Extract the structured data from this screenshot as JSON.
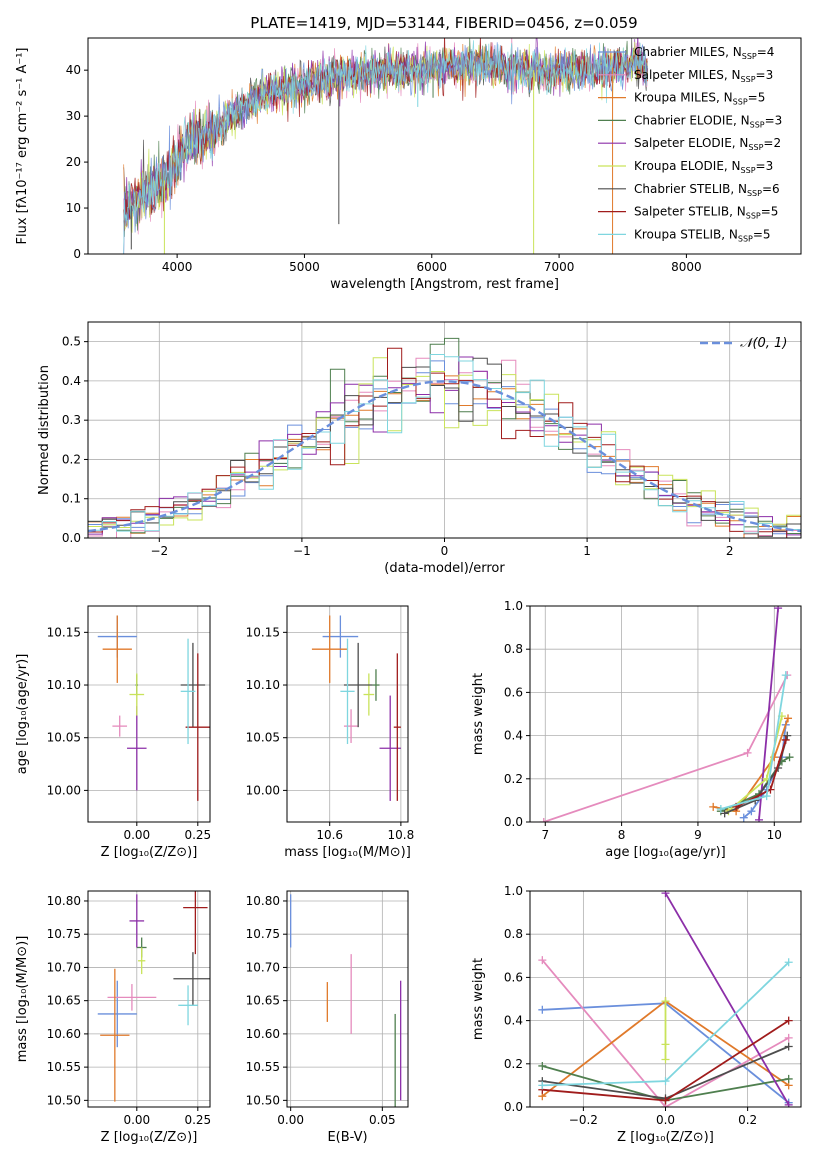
{
  "colors": {
    "series": [
      "#6a8fdc",
      "#e58bbd",
      "#e07a2b",
      "#4f7f4f",
      "#8c2fa8",
      "#c9e35a",
      "#4d4d4d",
      "#a01c1c",
      "#7fd6df"
    ],
    "gauss": "#6a8fdc"
  },
  "chart_data": [
    {
      "type": "line",
      "title": "PLATE=1419, MJD=53144, FIBERID=0456, z=0.059",
      "xlabel": "wavelength [Angstrom, rest frame]",
      "ylabel": "Flux [fλ10⁻¹⁷ erg cm⁻² s⁻¹ A⁻¹]",
      "xlim": [
        3300,
        8900
      ],
      "ylim": [
        0,
        47
      ],
      "xticks": [
        "4000",
        "5000",
        "6000",
        "7000",
        "8000"
      ],
      "yticks": [
        "0",
        "10",
        "20",
        "30",
        "40"
      ],
      "legend_position": "upper-right",
      "legend": [
        "Chabrier MILES, N_SSP=4",
        "Salpeter MILES, N_SSP=3",
        "Kroupa MILES, N_SSP=5",
        "Chabrier ELODIE, N_SSP=3",
        "Salpeter ELODIE, N_SSP=2",
        "Kroupa ELODIE, N_SSP=3",
        "Chabrier STELIB, N_SSP=6",
        "Salpeter STELIB, N_SSP=5",
        "Kroupa STELIB, N_SSP=5"
      ],
      "legend_prefix": [
        "Chabrier MILES, N",
        "Salpeter MILES, N",
        "Kroupa MILES, N",
        "Chabrier ELODIE, N",
        "Salpeter ELODIE, N",
        "Kroupa ELODIE, N",
        "Chabrier STELIB, N",
        "Salpeter STELIB, N",
        "Kroupa STELIB, N"
      ],
      "legend_sub": "SSP",
      "legend_counts": [
        "=4",
        "=3",
        "=5",
        "=3",
        "=2",
        "=3",
        "=6",
        "=5",
        "=5"
      ],
      "continuum_x": [
        3580,
        3700,
        3850,
        3950,
        4000,
        4100,
        4300,
        4500,
        4700,
        5000,
        5300,
        5600,
        5900,
        6200,
        6500,
        6800,
        7100,
        7300,
        7500,
        7600,
        7700
      ],
      "continuum_y": [
        9,
        12,
        15,
        17,
        21,
        24,
        27,
        32,
        35,
        37,
        39,
        40,
        40,
        41,
        41,
        40,
        40,
        40,
        41,
        42,
        40
      ]
    },
    {
      "type": "step",
      "xlabel": "(data-model)/error",
      "ylabel": "Normed distribution",
      "xlim": [
        -2.5,
        2.5
      ],
      "ylim": [
        0,
        0.55
      ],
      "xticks": [
        -2,
        -1,
        0,
        1,
        2
      ],
      "xtick_labels": [
        "−2",
        "−1",
        "0",
        "1",
        "2"
      ],
      "yticks": [
        "0.0",
        "0.1",
        "0.2",
        "0.3",
        "0.4",
        "0.5"
      ],
      "legend": "𝒩(0, 1)",
      "legend_position": "upper-right",
      "grid": true,
      "bin_width": 0.1
    },
    {
      "type": "scatter",
      "xlabel": "Z [log₁₀(Z/Z⊙)]",
      "ylabel": "age  [log₁₀(age/yr)]",
      "xlim": [
        -0.2,
        0.3
      ],
      "ylim": [
        9.97,
        10.175
      ],
      "xticks": [
        "0.00",
        "0.25"
      ],
      "yticks": [
        "10.00",
        "10.05",
        "10.10",
        "10.15"
      ],
      "points": [
        {
          "x": -0.08,
          "y": 10.146,
          "xerr": 0.08,
          "yerr": 0.02
        },
        {
          "x": -0.07,
          "y": 10.061,
          "xerr": 0.03,
          "yerr": 0.01
        },
        {
          "x": -0.08,
          "y": 10.134,
          "xerr": 0.06,
          "yerr": 0.032
        },
        {
          "x": 0.0,
          "y": 10.1,
          "xerr": 0.005,
          "yerr": 0.01
        },
        {
          "x": 0.0,
          "y": 10.04,
          "xerr": 0.04,
          "yerr": 0.04
        },
        {
          "x": 0.0,
          "y": 10.091,
          "xerr": 0.03,
          "yerr": 0.02
        },
        {
          "x": 0.23,
          "y": 10.1,
          "xerr": 0.05,
          "yerr": 0.04
        },
        {
          "x": 0.25,
          "y": 10.06,
          "xerr": 0.05,
          "yerr": 0.07
        },
        {
          "x": 0.21,
          "y": 10.094,
          "xerr": 0.03,
          "yerr": 0.05
        }
      ]
    },
    {
      "type": "scatter",
      "xlabel": "mass [log₁₀(M/M⊙)]",
      "xlim": [
        10.48,
        10.82
      ],
      "ylim": [
        9.97,
        10.175
      ],
      "xticks": [
        "10.6",
        "10.8"
      ],
      "yticks": [
        "10.00",
        "10.05",
        "10.10",
        "10.15"
      ],
      "points": [
        {
          "x": 10.63,
          "y": 10.146,
          "xerr": 0.05,
          "yerr": 0.02
        },
        {
          "x": 10.66,
          "y": 10.061,
          "xerr": 0.02,
          "yerr": 0.016
        },
        {
          "x": 10.6,
          "y": 10.134,
          "xerr": 0.05,
          "yerr": 0.032
        },
        {
          "x": 10.73,
          "y": 10.1,
          "xerr": 0.01,
          "yerr": 0.015
        },
        {
          "x": 10.77,
          "y": 10.04,
          "xerr": 0.03,
          "yerr": 0.05
        },
        {
          "x": 10.71,
          "y": 10.091,
          "xerr": 0.015,
          "yerr": 0.02
        },
        {
          "x": 10.68,
          "y": 10.1,
          "xerr": 0.04,
          "yerr": 0.04
        },
        {
          "x": 10.79,
          "y": 10.06,
          "xerr": 0.01,
          "yerr": 0.07
        },
        {
          "x": 10.65,
          "y": 10.094,
          "xerr": 0.02,
          "yerr": 0.05
        }
      ]
    },
    {
      "type": "line",
      "xlabel": "age  [log₁₀(age/yr)]",
      "ylabel": "mass weight",
      "xlim": [
        6.8,
        10.35
      ],
      "ylim": [
        0,
        1
      ],
      "xticks": [
        "7",
        "8",
        "9",
        "10"
      ],
      "yticks": [
        "0.0",
        "0.2",
        "0.4",
        "0.6",
        "0.8",
        "1.0"
      ],
      "grid": true,
      "series": [
        {
          "x": [
            9.6,
            9.7,
            9.9,
            10.1,
            10.15
          ],
          "y": [
            0.02,
            0.05,
            0.15,
            0.3,
            0.45
          ]
        },
        {
          "x": [
            6.98,
            9.65,
            10.17
          ],
          "y": [
            0.0,
            0.32,
            0.68
          ]
        },
        {
          "x": [
            9.2,
            9.5,
            10.0,
            10.18
          ],
          "y": [
            0.07,
            0.05,
            0.3,
            0.48
          ]
        },
        {
          "x": [
            9.3,
            9.8,
            10.1,
            10.2
          ],
          "y": [
            0.05,
            0.13,
            0.28,
            0.3
          ]
        },
        {
          "x": [
            9.8,
            10.05
          ],
          "y": [
            0.01,
            0.99
          ]
        },
        {
          "x": [
            9.4,
            9.9,
            10.1
          ],
          "y": [
            0.05,
            0.2,
            0.49
          ]
        },
        {
          "x": [
            9.35,
            9.75,
            10.05,
            10.17
          ],
          "y": [
            0.04,
            0.1,
            0.25,
            0.4
          ]
        },
        {
          "x": [
            9.5,
            9.95,
            10.15
          ],
          "y": [
            0.07,
            0.15,
            0.38
          ]
        },
        {
          "x": [
            9.3,
            9.9,
            10.15
          ],
          "y": [
            0.06,
            0.12,
            0.68
          ]
        }
      ]
    },
    {
      "type": "scatter",
      "xlabel": "Z [log₁₀(Z/Z⊙)]",
      "ylabel": "mass [log₁₀(M/M⊙)]",
      "xlim": [
        -0.2,
        0.3
      ],
      "ylim": [
        10.49,
        10.815
      ],
      "xticks": [
        "0.00",
        "0.25"
      ],
      "yticks": [
        "10.50",
        "10.55",
        "10.60",
        "10.65",
        "10.70",
        "10.75",
        "10.80"
      ],
      "points": [
        {
          "x": -0.08,
          "y": 10.63,
          "xerr": 0.08,
          "yerr": 0.05
        },
        {
          "x": -0.02,
          "y": 10.655,
          "xerr": 0.1,
          "yerr": 0.02
        },
        {
          "x": -0.09,
          "y": 10.598,
          "xerr": 0.06,
          "yerr": 0.1
        },
        {
          "x": 0.02,
          "y": 10.73,
          "xerr": 0.02,
          "yerr": 0.015
        },
        {
          "x": 0.0,
          "y": 10.77,
          "xerr": 0.03,
          "yerr": 0.04
        },
        {
          "x": 0.02,
          "y": 10.71,
          "xerr": 0.015,
          "yerr": 0.02
        },
        {
          "x": 0.23,
          "y": 10.683,
          "xerr": 0.08,
          "yerr": 0.04
        },
        {
          "x": 0.24,
          "y": 10.79,
          "xerr": 0.05,
          "yerr": 0.07
        },
        {
          "x": 0.21,
          "y": 10.643,
          "xerr": 0.04,
          "yerr": 0.03
        }
      ]
    },
    {
      "type": "scatter",
      "xlabel": "E(B-V)",
      "xlim": [
        -0.002,
        0.064
      ],
      "ylim": [
        10.49,
        10.815
      ],
      "xticks": [
        "0.00",
        "0.05"
      ],
      "yticks": [
        "10.50",
        "10.55",
        "10.60",
        "10.65",
        "10.70",
        "10.75",
        "10.80"
      ],
      "points": [
        {
          "x": 0.0,
          "y": 10.77,
          "xerr": 0,
          "yerr": 0.04
        },
        {
          "x": 0.033,
          "y": 10.66,
          "xerr": 0,
          "yerr": 0.06
        },
        {
          "x": 0.02,
          "y": 10.648,
          "xerr": 0,
          "yerr": 0.03
        },
        {
          "x": 0.057,
          "y": 10.56,
          "xerr": 0,
          "yerr": 0.07
        },
        {
          "x": 0.06,
          "y": 10.59,
          "xerr": 0,
          "yerr": 0.09
        }
      ]
    },
    {
      "type": "line",
      "xlabel": "Z [log₁₀(Z/Z⊙)]",
      "ylabel": "mass weight",
      "xlim": [
        -0.33,
        0.33
      ],
      "ylim": [
        0,
        1
      ],
      "xticks": [
        -0.2,
        0.0,
        0.2
      ],
      "xtick_labels": [
        "−0.2",
        "0.0",
        "0.2"
      ],
      "yticks": [
        "0.0",
        "0.2",
        "0.4",
        "0.6",
        "0.8",
        "1.0"
      ],
      "grid": true,
      "series": [
        {
          "x": [
            -0.3,
            0.0,
            0.3
          ],
          "y": [
            0.45,
            0.48,
            0.02
          ]
        },
        {
          "x": [
            -0.3,
            0.0,
            0.3
          ],
          "y": [
            0.68,
            0.0,
            0.32
          ]
        },
        {
          "x": [
            -0.3,
            0.0,
            0.3
          ],
          "y": [
            0.05,
            0.49,
            0.1
          ]
        },
        {
          "x": [
            -0.3,
            0.0,
            0.3
          ],
          "y": [
            0.19,
            0.03,
            0.13
          ]
        },
        {
          "x": [
            0.0,
            0.3
          ],
          "y": [
            0.99,
            0.01
          ]
        },
        {
          "x": [
            0.0,
            0.0,
            0.0
          ],
          "y": [
            0.49,
            0.29,
            0.22
          ]
        },
        {
          "x": [
            -0.3,
            0.0,
            0.3
          ],
          "y": [
            0.12,
            0.04,
            0.28
          ]
        },
        {
          "x": [
            -0.3,
            0.0,
            0.3
          ],
          "y": [
            0.08,
            0.03,
            0.4
          ]
        },
        {
          "x": [
            -0.3,
            0.0,
            0.3
          ],
          "y": [
            0.1,
            0.12,
            0.67
          ]
        }
      ]
    }
  ]
}
